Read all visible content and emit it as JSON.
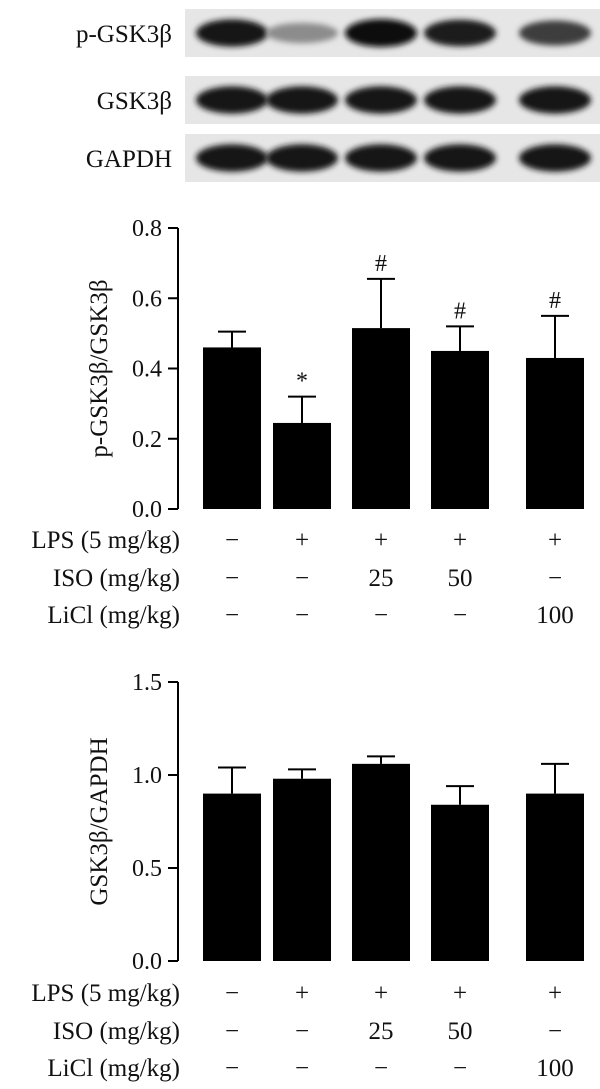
{
  "blot": {
    "lanes": 5,
    "rows": [
      {
        "label": "p-GSK3β",
        "intensities": [
          0.95,
          0.35,
          1.0,
          0.9,
          0.75
        ]
      },
      {
        "label": "GSK3β",
        "intensities": [
          0.95,
          0.95,
          0.95,
          0.95,
          0.95
        ]
      },
      {
        "label": "GAPDH",
        "intensities": [
          0.95,
          0.95,
          0.95,
          0.95,
          0.95
        ]
      }
    ]
  },
  "treatments": [
    {
      "label": "LPS (5 mg/kg)",
      "values": [
        "−",
        "+",
        "+",
        "+",
        "+"
      ]
    },
    {
      "label": "ISO (mg/kg)",
      "values": [
        "−",
        "−",
        "25",
        "50",
        "−"
      ]
    },
    {
      "label": "LiCl (mg/kg)",
      "values": [
        "−",
        "−",
        "−",
        "−",
        "100"
      ]
    }
  ],
  "chart_data": [
    {
      "type": "bar",
      "ylabel": "p-GSK3β/GSK3β",
      "ylim": [
        0,
        0.8
      ],
      "yticks": [
        "0.0",
        "0.2",
        "0.4",
        "0.6",
        "0.8"
      ],
      "yticks_values": [
        0,
        0.2,
        0.4,
        0.6,
        0.8
      ],
      "values": [
        0.46,
        0.245,
        0.515,
        0.45,
        0.43
      ],
      "errors": [
        0.045,
        0.075,
        0.14,
        0.07,
        0.12
      ],
      "annotations": [
        "",
        "*",
        "#",
        "#",
        "#"
      ],
      "color": "#000000"
    },
    {
      "type": "bar",
      "ylabel": "GSK3β/GAPDH",
      "ylim": [
        0,
        1.5
      ],
      "yticks": [
        "0.0",
        "0.5",
        "1.0",
        "1.5"
      ],
      "yticks_values": [
        0,
        0.5,
        1.0,
        1.5
      ],
      "values": [
        0.9,
        0.98,
        1.06,
        0.84,
        0.9
      ],
      "errors": [
        0.14,
        0.05,
        0.04,
        0.1,
        0.16
      ],
      "annotations": [
        "",
        "",
        "",
        "",
        ""
      ],
      "color": "#000000"
    }
  ]
}
